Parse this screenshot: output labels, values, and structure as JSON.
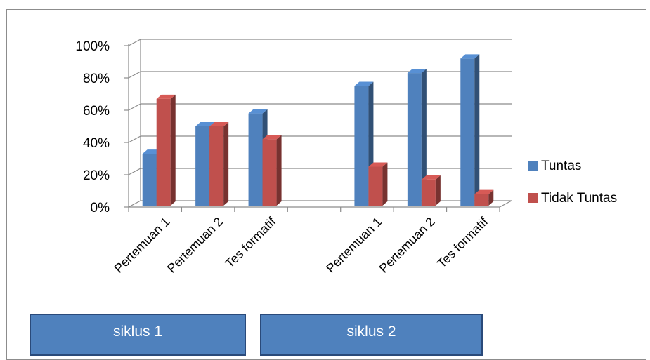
{
  "chart_data": {
    "type": "bar",
    "title": "",
    "xlabel": "",
    "ylabel": "",
    "ylim": [
      0,
      100
    ],
    "y_ticks": [
      "0%",
      "20%",
      "40%",
      "60%",
      "80%",
      "100%"
    ],
    "y_tick_values": [
      0,
      20,
      40,
      60,
      80,
      100
    ],
    "grid": true,
    "legend_position": "right",
    "categories": [
      "Pertemuan 1",
      "Pertemuan 2",
      "Tes formatif",
      "",
      "Pertemuan 1",
      "Pertemuan 2",
      "Tes formatif"
    ],
    "series": [
      {
        "name": "Tuntas",
        "color": "#4f81bd",
        "values": [
          33,
          50,
          58,
          null,
          75,
          83,
          92
        ]
      },
      {
        "name": "Tidak Tuntas",
        "color": "#c0504d",
        "values": [
          67,
          50,
          42,
          null,
          25,
          17,
          8
        ]
      }
    ],
    "groups": [
      {
        "label": "siklus 1"
      },
      {
        "label": "siklus 2"
      }
    ]
  }
}
